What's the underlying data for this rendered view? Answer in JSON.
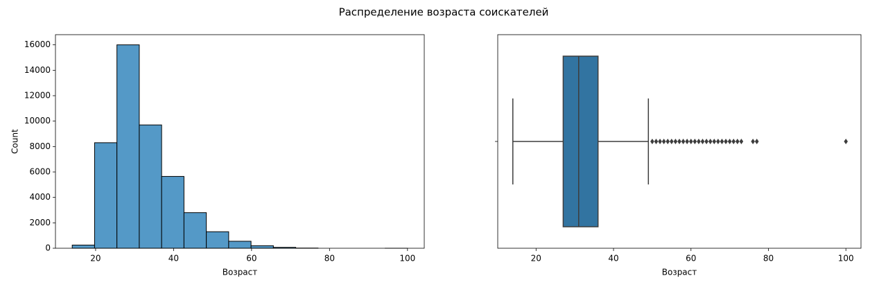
{
  "title": "Распределение возраста соискателей",
  "chart_data": [
    {
      "type": "histogram",
      "xlabel": "Возраст",
      "ylabel": "Count",
      "color": "#5499c7",
      "bins": [
        14,
        19.733,
        25.467,
        31.2,
        36.933,
        42.667,
        48.4,
        54.133,
        59.867,
        65.6,
        71.333,
        77.067,
        82.8,
        88.533,
        94.267,
        100
      ],
      "counts": [
        250,
        8300,
        16000,
        9700,
        5650,
        2800,
        1300,
        550,
        200,
        70,
        15,
        0,
        0,
        0,
        1
      ],
      "xlim": [
        9.7,
        104.3
      ],
      "xticks": [
        20,
        40,
        60,
        80,
        100
      ],
      "ylim": [
        0,
        16800
      ],
      "yticks": [
        0,
        2000,
        4000,
        6000,
        8000,
        10000,
        12000,
        14000,
        16000
      ]
    },
    {
      "type": "box",
      "xlabel": "Возраст",
      "color": "#3274a1",
      "whislo": 14,
      "q1": 27,
      "med": 31,
      "q3": 36,
      "whishi": 49,
      "fliers": [
        50,
        51,
        52,
        53,
        54,
        55,
        56,
        57,
        58,
        59,
        60,
        61,
        62,
        63,
        64,
        65,
        66,
        67,
        68,
        69,
        70,
        71,
        72,
        73,
        76,
        77,
        100
      ],
      "xlim": [
        10.1,
        103.9
      ],
      "xticks": [
        20,
        40,
        60,
        80,
        100
      ]
    }
  ]
}
